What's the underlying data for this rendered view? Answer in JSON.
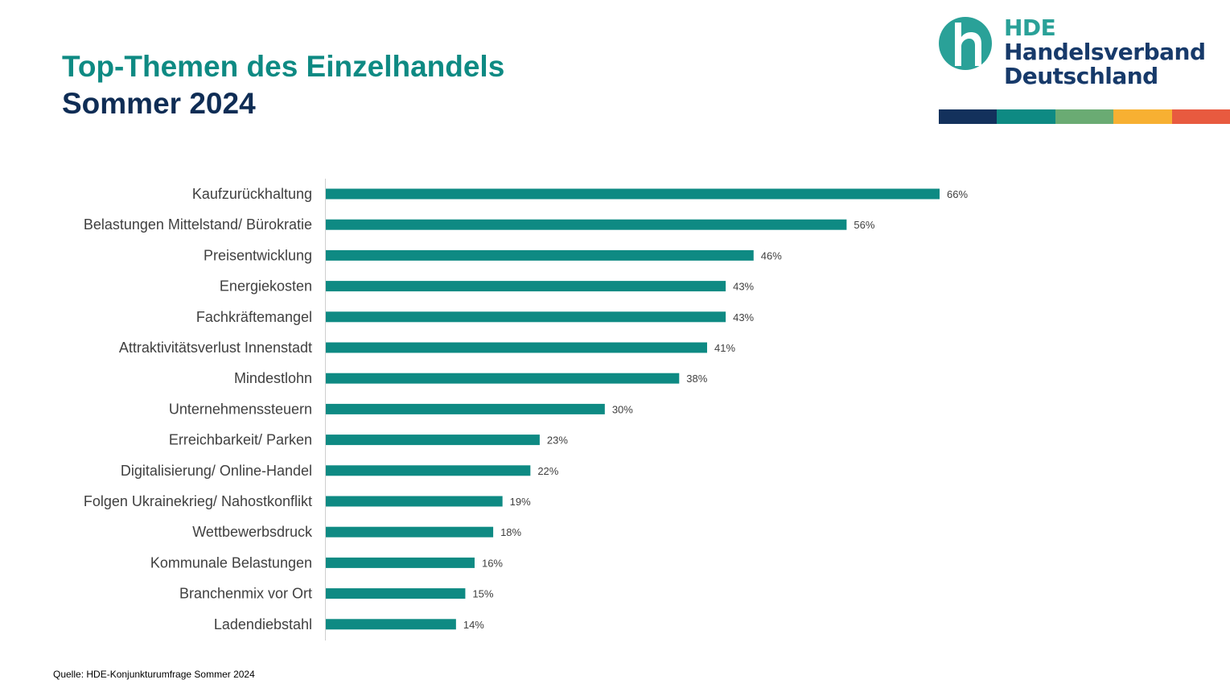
{
  "header": {
    "title": "Top-Themen des Einzelhandels",
    "subtitle": "Sommer 2024"
  },
  "logo": {
    "abbr": "HDE",
    "name_line1": "Handelsverband",
    "name_line2": "Deutschland",
    "icon": "hde-h-logo-icon",
    "stripe_colors": [
      "#13315c",
      "#0e8a83",
      "#6aab73",
      "#f7b032",
      "#e85a3f"
    ]
  },
  "chart_data": {
    "type": "bar",
    "orientation": "horizontal",
    "title": "Top-Themen des Einzelhandels",
    "subtitle": "Sommer 2024",
    "categories": [
      "Kaufzurückhaltung",
      "Belastungen Mittelstand/ Bürokratie",
      "Preisentwicklung",
      "Energiekosten",
      "Fachkräftemangel",
      "Attraktivitätsverlust Innenstadt",
      "Mindestlohn",
      "Unternehmenssteuern",
      "Erreichbarkeit/ Parken",
      "Digitalisierung/ Online-Handel",
      "Folgen Ukrainekrieg/ Nahostkonflikt",
      "Wettbewerbsdruck",
      "Kommunale Belastungen",
      "Branchenmix vor Ort",
      "Ladendiebstahl"
    ],
    "values": [
      66,
      56,
      46,
      43,
      43,
      41,
      38,
      30,
      23,
      22,
      19,
      18,
      16,
      15,
      14
    ],
    "data_labels": [
      "66%",
      "56%",
      "46%",
      "43%",
      "43%",
      "41%",
      "38%",
      "30%",
      "23%",
      "22%",
      "19%",
      "18%",
      "16%",
      "15%",
      "14%"
    ],
    "xlim": [
      0,
      66
    ],
    "xlabel": "",
    "ylabel": "",
    "grid": false,
    "legend": "none",
    "bar_color": "#0e8a83"
  },
  "footer": {
    "source": "Quelle: HDE-Konjunkturumfrage Sommer 2024"
  }
}
